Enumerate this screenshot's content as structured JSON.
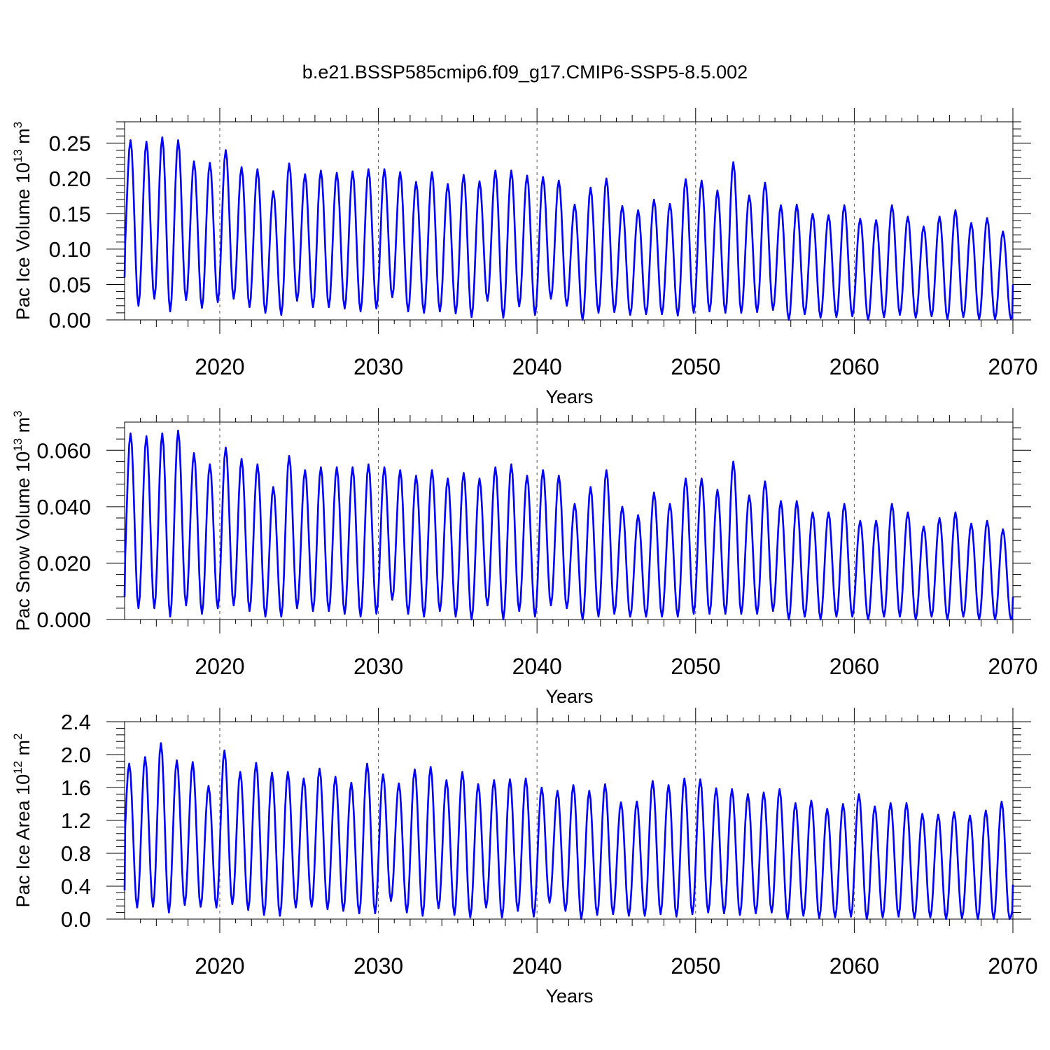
{
  "figure_title": "b.e21.BSSP585cmip6.f09_g17.CMIP6-SSP5-8.5.002",
  "line_color": "#0000ff",
  "chart_data": [
    {
      "type": "line",
      "id": "ice-volume",
      "ylabel_main": "Pac Ice Volume 10",
      "ylabel_exp": "13",
      "ylabel_unit": " m",
      "ylabel_unit_exp": "3",
      "xlabel": "Years",
      "xlim": [
        2014.0,
        2070.0
      ],
      "ylim": [
        0.0,
        0.28
      ],
      "xticks": [
        2020,
        2030,
        2040,
        2050,
        2060,
        2070
      ],
      "xtick_labels": [
        "2020",
        "2030",
        "2040",
        "2050",
        "2060",
        "2070"
      ],
      "yticks": [
        0.0,
        0.05,
        0.1,
        0.15,
        0.2,
        0.25
      ],
      "ytick_labels": [
        "0.00",
        "0.05",
        "0.10",
        "0.15",
        "0.20",
        "0.25"
      ],
      "peak_month": 4,
      "min_month": 10,
      "annual_peaks": [
        0.254,
        0.252,
        0.258,
        0.254,
        0.224,
        0.222,
        0.24,
        0.216,
        0.213,
        0.182,
        0.221,
        0.206,
        0.211,
        0.208,
        0.21,
        0.213,
        0.213,
        0.209,
        0.195,
        0.209,
        0.192,
        0.205,
        0.196,
        0.211,
        0.211,
        0.204,
        0.202,
        0.197,
        0.163,
        0.187,
        0.2,
        0.161,
        0.155,
        0.17,
        0.164,
        0.199,
        0.197,
        0.183,
        0.223,
        0.176,
        0.194,
        0.162,
        0.163,
        0.15,
        0.148,
        0.162,
        0.143,
        0.141,
        0.162,
        0.146,
        0.132,
        0.146,
        0.155,
        0.137,
        0.144,
        0.125
      ],
      "annual_minima": [
        0.02,
        0.03,
        0.012,
        0.028,
        0.017,
        0.025,
        0.03,
        0.018,
        0.01,
        0.007,
        0.027,
        0.018,
        0.018,
        0.016,
        0.012,
        0.016,
        0.032,
        0.012,
        0.01,
        0.012,
        0.009,
        0.004,
        0.027,
        0.003,
        0.019,
        0.007,
        0.03,
        0.02,
        0.0,
        0.01,
        0.011,
        0.007,
        0.008,
        0.008,
        0.006,
        0.01,
        0.012,
        0.01,
        0.01,
        0.011,
        0.014,
        0.0,
        0.008,
        0.003,
        0.004,
        0.005,
        0.0,
        0.004,
        0.007,
        0.003,
        0.005,
        0.001,
        0.004,
        0.001,
        0.001,
        0.001
      ],
      "start_value": 0.06,
      "end_value": 0.05
    },
    {
      "type": "line",
      "id": "snow-volume",
      "ylabel_main": "Pac Snow Volume 10",
      "ylabel_exp": "13",
      "ylabel_unit": " m",
      "ylabel_unit_exp": "3",
      "xlabel": "Years",
      "xlim": [
        2014.0,
        2070.0
      ],
      "ylim": [
        0.0,
        0.07
      ],
      "xticks": [
        2020,
        2030,
        2040,
        2050,
        2060,
        2070
      ],
      "xtick_labels": [
        "2020",
        "2030",
        "2040",
        "2050",
        "2060",
        "2070"
      ],
      "yticks": [
        0.0,
        0.02,
        0.04,
        0.06
      ],
      "ytick_labels": [
        "0.000",
        "0.020",
        "0.040",
        "0.060"
      ],
      "peak_month": 4,
      "min_month": 10,
      "annual_peaks": [
        0.066,
        0.065,
        0.066,
        0.067,
        0.059,
        0.055,
        0.061,
        0.057,
        0.055,
        0.047,
        0.058,
        0.053,
        0.054,
        0.054,
        0.054,
        0.055,
        0.054,
        0.053,
        0.051,
        0.053,
        0.05,
        0.052,
        0.05,
        0.054,
        0.055,
        0.051,
        0.053,
        0.051,
        0.041,
        0.047,
        0.053,
        0.04,
        0.037,
        0.045,
        0.041,
        0.05,
        0.05,
        0.046,
        0.056,
        0.044,
        0.049,
        0.042,
        0.042,
        0.038,
        0.038,
        0.041,
        0.035,
        0.035,
        0.041,
        0.038,
        0.033,
        0.036,
        0.038,
        0.034,
        0.035,
        0.032
      ],
      "annual_minima": [
        0.004,
        0.004,
        0.001,
        0.005,
        0.002,
        0.004,
        0.005,
        0.003,
        0.001,
        0.001,
        0.004,
        0.003,
        0.003,
        0.002,
        0.001,
        0.002,
        0.007,
        0.002,
        0.001,
        0.003,
        0.001,
        0.0,
        0.005,
        0.0,
        0.003,
        0.001,
        0.005,
        0.004,
        0.0,
        0.001,
        0.002,
        0.001,
        0.001,
        0.001,
        0.001,
        0.002,
        0.002,
        0.002,
        0.002,
        0.002,
        0.003,
        0.0,
        0.001,
        0.0,
        0.001,
        0.001,
        0.0,
        0.001,
        0.001,
        0.0,
        0.001,
        0.0,
        0.001,
        0.0,
        0.0,
        0.0
      ],
      "start_value": 0.008,
      "end_value": 0.008
    },
    {
      "type": "line",
      "id": "ice-area",
      "ylabel_main": "Pac Ice Area 10",
      "ylabel_exp": "12",
      "ylabel_unit": " m",
      "ylabel_unit_exp": "2",
      "xlabel": "Years",
      "xlim": [
        2014.0,
        2070.0
      ],
      "ylim": [
        0.0,
        2.4
      ],
      "xticks": [
        2020,
        2030,
        2040,
        2050,
        2060,
        2070
      ],
      "xtick_labels": [
        "2020",
        "2030",
        "2040",
        "2050",
        "2060",
        "2070"
      ],
      "yticks": [
        0.0,
        0.4,
        0.8,
        1.2,
        1.6,
        2.0,
        2.4
      ],
      "ytick_labels": [
        "0.0",
        "0.4",
        "0.8",
        "1.2",
        "1.6",
        "2.0",
        "2.4"
      ],
      "peak_month": 3,
      "min_month": 9,
      "annual_peaks": [
        1.89,
        1.97,
        2.14,
        1.93,
        1.91,
        1.62,
        2.05,
        1.79,
        1.9,
        1.78,
        1.79,
        1.71,
        1.83,
        1.73,
        1.66,
        1.89,
        1.76,
        1.65,
        1.82,
        1.85,
        1.69,
        1.79,
        1.64,
        1.69,
        1.7,
        1.71,
        1.6,
        1.56,
        1.63,
        1.56,
        1.64,
        1.42,
        1.43,
        1.68,
        1.63,
        1.71,
        1.7,
        1.59,
        1.58,
        1.52,
        1.54,
        1.58,
        1.41,
        1.44,
        1.34,
        1.4,
        1.52,
        1.37,
        1.41,
        1.41,
        1.28,
        1.27,
        1.3,
        1.26,
        1.32,
        1.43
      ],
      "annual_minima": [
        0.14,
        0.15,
        0.08,
        0.17,
        0.15,
        0.14,
        0.18,
        0.11,
        0.05,
        0.04,
        0.14,
        0.15,
        0.12,
        0.1,
        0.07,
        0.07,
        0.22,
        0.08,
        0.04,
        0.13,
        0.05,
        0.02,
        0.14,
        0.02,
        0.1,
        0.03,
        0.2,
        0.1,
        0.0,
        0.05,
        0.06,
        0.04,
        0.04,
        0.06,
        0.03,
        0.06,
        0.08,
        0.07,
        0.05,
        0.07,
        0.08,
        0.0,
        0.04,
        0.01,
        0.02,
        0.03,
        0.0,
        0.02,
        0.03,
        0.01,
        0.02,
        0.0,
        0.01,
        0.0,
        0.0,
        0.0
      ],
      "start_value": 0.35,
      "end_value": 0.42
    }
  ]
}
